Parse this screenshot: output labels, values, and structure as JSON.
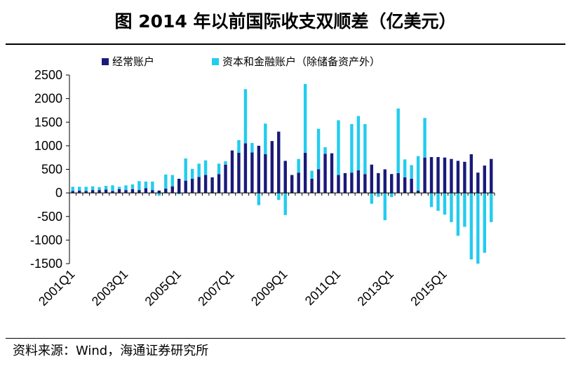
{
  "title": "图  2014 年以前国际收支双顺差（亿美元）",
  "source": "资料来源：Wind，海通证券研究所",
  "chart_data": {
    "type": "bar",
    "subtype": "stacked",
    "categories": [
      "2001Q1",
      "2001Q2",
      "2001Q3",
      "2001Q4",
      "2002Q1",
      "2002Q2",
      "2002Q3",
      "2002Q4",
      "2003Q1",
      "2003Q2",
      "2003Q3",
      "2003Q4",
      "2004Q1",
      "2004Q2",
      "2004Q3",
      "2004Q4",
      "2005Q1",
      "2005Q2",
      "2005Q3",
      "2005Q4",
      "2006Q1",
      "2006Q2",
      "2006Q3",
      "2006Q4",
      "2007Q1",
      "2007Q2",
      "2007Q3",
      "2007Q4",
      "2008Q1",
      "2008Q2",
      "2008Q3",
      "2008Q4",
      "2009Q1",
      "2009Q2",
      "2009Q3",
      "2009Q4",
      "2010Q1",
      "2010Q2",
      "2010Q3",
      "2010Q4",
      "2011Q1",
      "2011Q2",
      "2011Q3",
      "2011Q4",
      "2012Q1",
      "2012Q2",
      "2012Q3",
      "2012Q4",
      "2013Q1",
      "2013Q2",
      "2013Q3",
      "2013Q4",
      "2014Q1",
      "2014Q2",
      "2014Q3",
      "2014Q4",
      "2015Q1",
      "2015Q2",
      "2015Q3",
      "2015Q4",
      "2016Q1",
      "2016Q2",
      "2016Q3",
      "2016Q4"
    ],
    "x_tick_labels": [
      "2001Q1",
      "2003Q1",
      "2005Q1",
      "2007Q1",
      "2009Q1",
      "2011Q1",
      "2013Q1",
      "2015Q1"
    ],
    "series": [
      {
        "name": "经常账户",
        "color": "#1a1a7a",
        "values": [
          40,
          50,
          40,
          60,
          60,
          70,
          40,
          80,
          60,
          80,
          60,
          100,
          60,
          50,
          90,
          140,
          300,
          260,
          300,
          340,
          380,
          330,
          400,
          600,
          900,
          850,
          1050,
          860,
          1000,
          820,
          1100,
          1300,
          680,
          380,
          430,
          850,
          300,
          500,
          830,
          840,
          380,
          420,
          430,
          480,
          400,
          600,
          420,
          500,
          400,
          420,
          330,
          300,
          50,
          750,
          760,
          760,
          750,
          720,
          680,
          660,
          820,
          430,
          580,
          720
        ]
      },
      {
        "name": "资本和金融账户（除储备资产外）",
        "color": "#22ccee",
        "values": [
          90,
          80,
          90,
          80,
          60,
          80,
          120,
          50,
          100,
          100,
          190,
          140,
          180,
          -60,
          300,
          240,
          -30,
          470,
          210,
          280,
          310,
          -10,
          220,
          70,
          -10,
          270,
          1150,
          200,
          -260,
          650,
          -10,
          -150,
          -470,
          -10,
          290,
          1460,
          170,
          860,
          140,
          -10,
          1160,
          -10,
          1030,
          1150,
          1060,
          -230,
          -80,
          -580,
          -90,
          1370,
          380,
          290,
          730,
          840,
          -300,
          -380,
          -460,
          -620,
          -910,
          -720,
          -1410,
          -1500,
          -1270,
          -620
        ]
      }
    ],
    "ylim": [
      -1500,
      2500
    ],
    "yticks": [
      "2500",
      "2000",
      "1500",
      "1000",
      "500",
      "0",
      "-500",
      "-1000",
      "-1500"
    ],
    "xlabel": "",
    "ylabel": "",
    "legend_position": "top",
    "grid": false
  }
}
